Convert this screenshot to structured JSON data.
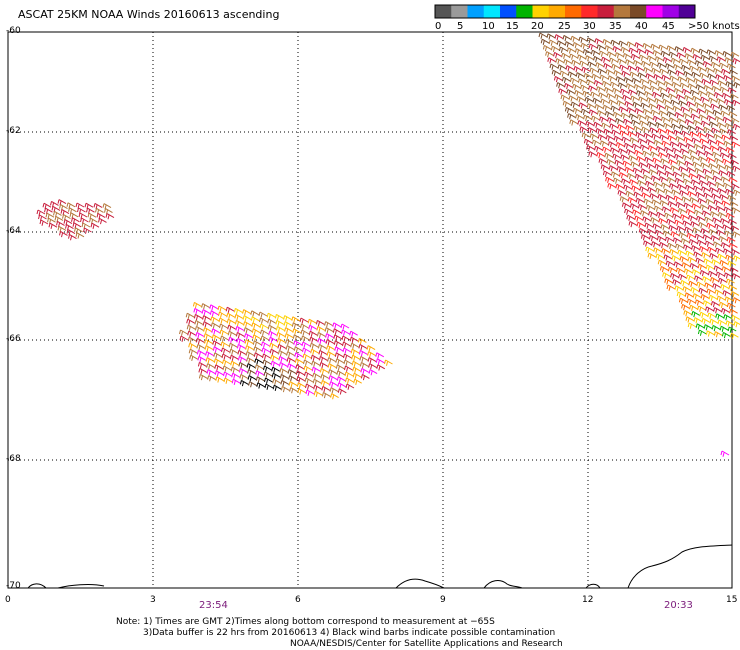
{
  "header": {
    "title": "ASCAT 25KM NOAA Winds 20160613 ascending"
  },
  "colorbar": {
    "units": ">50 knots",
    "labels": [
      "0",
      "5",
      "10",
      "15",
      "20",
      "25",
      "30",
      "35",
      "40",
      "45"
    ],
    "colors": [
      "#555555",
      "#9a9a9a",
      "#00a0ff",
      "#00e6ff",
      "#0050ff",
      "#00b400",
      "#ffd200",
      "#ffaa00",
      "#ff6a00",
      "#ff2a2a",
      "#c81e3c",
      "#b4783c",
      "#7a4a28",
      "#ff00ff",
      "#a000e6",
      "#500096"
    ]
  },
  "axes": {
    "lat_labels": [
      "-60",
      "-62",
      "-64",
      "-66",
      "-68",
      "-70"
    ],
    "lon_labels": [
      "0",
      "3",
      "6",
      "9",
      "12",
      "15"
    ]
  },
  "pass_times": {
    "time_1": "23:54",
    "time_2": "20:33"
  },
  "notes": {
    "line_1": "Note: 1) Times are GMT 2)Times along bottom correspond to measurement at −65S",
    "line_2": "3)Data buffer is 22 hrs from 20160613 4) Black wind barbs indicate possible contamination",
    "line_3": "NOAA/NESDIS/Center for Satellite Applications and Research"
  },
  "wind_swaths": [
    {
      "region": "west-patch",
      "dominant_colors": [
        "#c81e3c",
        "#b4783c"
      ]
    },
    {
      "region": "central-patch",
      "dominant_colors": [
        "#c81e3c",
        "#b4783c",
        "#ffaa00",
        "#ff00ff"
      ]
    },
    {
      "region": "northeast-swath",
      "dominant_colors": [
        "#b4783c",
        "#c81e3c",
        "#ff2a2a",
        "#ffaa00",
        "#ffd200",
        "#00b400"
      ]
    }
  ]
}
